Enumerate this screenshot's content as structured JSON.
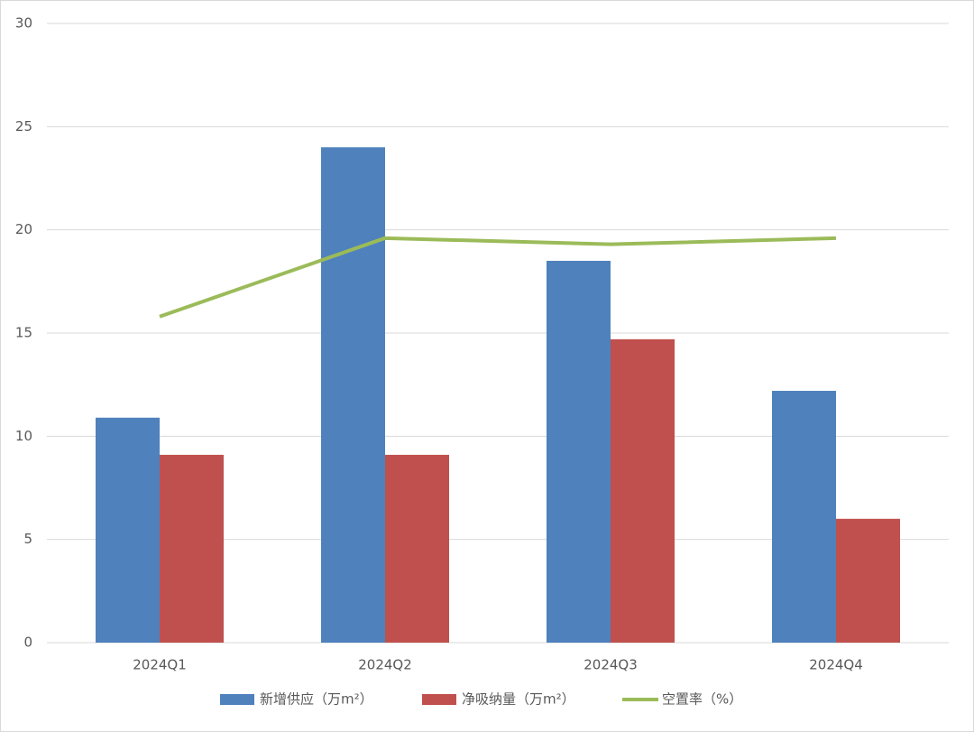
{
  "chart_data": {
    "type": "bar",
    "categories": [
      "2024Q1",
      "2024Q2",
      "2024Q3",
      "2024Q4"
    ],
    "series": [
      {
        "name": "新增供应（万m²）",
        "color": "#4f81bd",
        "type": "bar",
        "values": [
          10.9,
          24.0,
          18.5,
          12.2
        ]
      },
      {
        "name": "净吸纳量（万m²）",
        "color": "#c0504d",
        "type": "bar",
        "values": [
          9.1,
          9.1,
          14.7,
          6.0
        ]
      },
      {
        "name": "空置率（%）",
        "color": "#9bbb59",
        "type": "line",
        "values": [
          15.8,
          19.6,
          19.3,
          19.6
        ]
      }
    ],
    "ylim": [
      0,
      30
    ],
    "yticks": [
      0,
      5,
      10,
      15,
      20,
      25,
      30
    ],
    "grid": true,
    "legend": "bottom"
  }
}
